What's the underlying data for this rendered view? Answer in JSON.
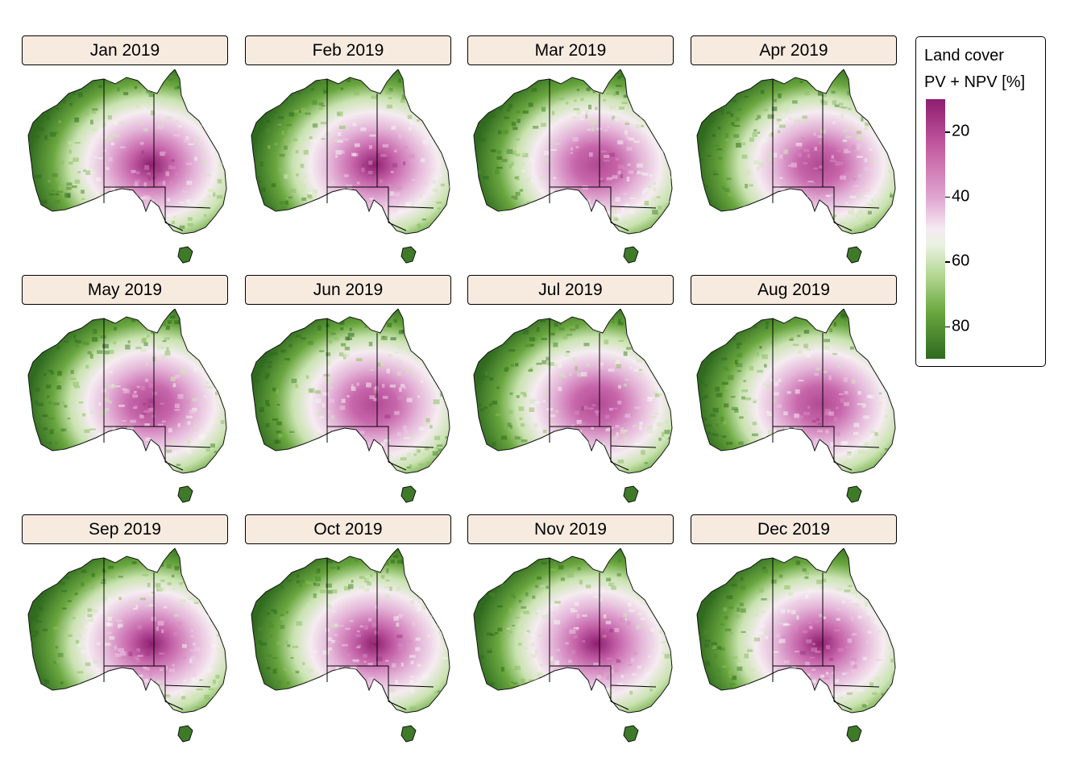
{
  "panels": [
    {
      "title": "Jan 2019"
    },
    {
      "title": "Feb 2019"
    },
    {
      "title": "Mar 2019"
    },
    {
      "title": "Apr 2019"
    },
    {
      "title": "May 2019"
    },
    {
      "title": "Jun 2019"
    },
    {
      "title": "Jul 2019"
    },
    {
      "title": "Aug 2019"
    },
    {
      "title": "Sep 2019"
    },
    {
      "title": "Oct 2019"
    },
    {
      "title": "Nov 2019"
    },
    {
      "title": "Dec 2019"
    }
  ],
  "legend": {
    "title_line1": "Land cover",
    "title_line2": "PV + NPV [%]",
    "ticks": [
      "20",
      "40",
      "60",
      "80"
    ],
    "scale_min": 10,
    "scale_max": 90,
    "low_color": "#8e1d6f",
    "mid_color": "#f7f7f7",
    "high_color": "#2f6a1f"
  },
  "colors": {
    "strip_fill": "#f7ebe0",
    "border": "#000000"
  }
}
